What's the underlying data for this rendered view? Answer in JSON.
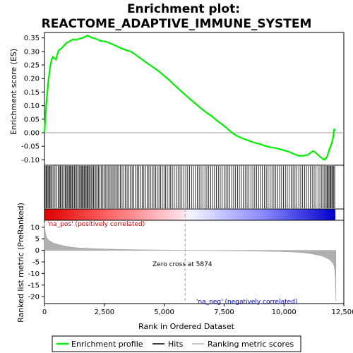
{
  "chart_data": {
    "type": "line",
    "title_line1": "Enrichment plot:",
    "title_line2": "REACTOME_ADAPTIVE_IMMUNE_SYSTEM",
    "xlabel": "Rank in Ordered Dataset",
    "ylabel_top": "Enrichment score (ES)",
    "ylabel_bottom": "Ranked list metric (PreRanked)",
    "xlim": [
      0,
      12500
    ],
    "x_ticks": [
      0,
      2500,
      5000,
      7500,
      10000,
      12500
    ],
    "x_tick_labels": [
      "0",
      "2,500",
      "5,000",
      "7,500",
      "10,000",
      "12,500"
    ],
    "es_ylim": [
      -0.12,
      0.37
    ],
    "es_ticks": [
      -0.1,
      -0.05,
      0.0,
      0.05,
      0.1,
      0.15,
      0.2,
      0.25,
      0.3,
      0.35
    ],
    "es_tick_labels": [
      "-0.10",
      "-0.05",
      "0.00",
      "0.05",
      "0.10",
      "0.15",
      "0.20",
      "0.25",
      "0.30",
      "0.35"
    ],
    "metric_ylim": [
      -23,
      13
    ],
    "metric_ticks": [
      10,
      5,
      0,
      -5,
      -10,
      -15,
      -20
    ],
    "metric_tick_labels": [
      "10",
      "5",
      "0",
      "-5",
      "-10",
      "-15",
      "-20"
    ],
    "es_curve": {
      "name": "Enrichment profile",
      "color": "#00ee00",
      "x": [
        0,
        40,
        80,
        120,
        160,
        200,
        250,
        300,
        350,
        420,
        480,
        540,
        600,
        700,
        800,
        900,
        1000,
        1100,
        1200,
        1300,
        1400,
        1500,
        1600,
        1700,
        1800,
        1900,
        2000,
        2100,
        2200,
        2300,
        2400,
        2500,
        2600,
        2800,
        3000,
        3200,
        3400,
        3600,
        3800,
        4000,
        4200,
        4400,
        4600,
        4800,
        5000,
        5200,
        5400,
        5600,
        5874,
        6000,
        6200,
        6400,
        6600,
        6800,
        7000,
        7200,
        7400,
        7600,
        7800,
        8000,
        8200,
        8400,
        8600,
        8800,
        9000,
        9200,
        9400,
        9600,
        9800,
        10000,
        10200,
        10400,
        10600,
        10800,
        11000,
        11100,
        11200,
        11300,
        11400,
        11500,
        11600,
        11650,
        11700,
        11750,
        11800,
        11850,
        11900,
        11950,
        12000,
        12050,
        12100,
        12150
      ],
      "y": [
        0.0,
        0.06,
        0.11,
        0.15,
        0.19,
        0.22,
        0.25,
        0.27,
        0.28,
        0.275,
        0.27,
        0.29,
        0.305,
        0.31,
        0.32,
        0.33,
        0.335,
        0.34,
        0.345,
        0.342,
        0.345,
        0.348,
        0.35,
        0.355,
        0.358,
        0.355,
        0.35,
        0.348,
        0.345,
        0.34,
        0.338,
        0.338,
        0.335,
        0.328,
        0.32,
        0.312,
        0.305,
        0.3,
        0.288,
        0.275,
        0.262,
        0.25,
        0.238,
        0.225,
        0.21,
        0.195,
        0.178,
        0.162,
        0.14,
        0.13,
        0.115,
        0.1,
        0.085,
        0.072,
        0.06,
        0.045,
        0.032,
        0.018,
        0.002,
        -0.01,
        -0.018,
        -0.025,
        -0.032,
        -0.038,
        -0.042,
        -0.048,
        -0.053,
        -0.056,
        -0.06,
        -0.065,
        -0.07,
        -0.078,
        -0.085,
        -0.085,
        -0.082,
        -0.075,
        -0.068,
        -0.072,
        -0.08,
        -0.088,
        -0.095,
        -0.098,
        -0.1,
        -0.095,
        -0.088,
        -0.075,
        -0.06,
        -0.05,
        -0.038,
        -0.02,
        0.012,
        0.008
      ]
    },
    "hits": {
      "name": "Hits",
      "color": "#000000",
      "x": [
        30,
        70,
        110,
        150,
        190,
        230,
        270,
        320,
        380,
        440,
        520,
        580,
        620,
        660,
        700,
        760,
        820,
        870,
        910,
        950,
        1000,
        1040,
        1080,
        1120,
        1160,
        1200,
        1250,
        1300,
        1350,
        1400,
        1450,
        1500,
        1540,
        1580,
        1620,
        1660,
        1700,
        1740,
        1780,
        1820,
        1860,
        1900,
        1950,
        2000,
        2050,
        2100,
        2150,
        2200,
        2260,
        2320,
        2380,
        2440,
        2500,
        2560,
        2620,
        2680,
        2740,
        2800,
        2860,
        2920,
        2980,
        3040,
        3100,
        3170,
        3240,
        3310,
        3380,
        3450,
        3520,
        3590,
        3660,
        3730,
        3800,
        3870,
        3940,
        4010,
        4080,
        4150,
        4220,
        4290,
        4360,
        4430,
        4500,
        4570,
        4640,
        4710,
        4780,
        4850,
        4920,
        4990,
        5060,
        5130,
        5200,
        5270,
        5340,
        5420,
        5500,
        5580,
        5660,
        5740,
        5820,
        5900,
        5980,
        6060,
        6140,
        6220,
        6300,
        6380,
        6460,
        6540,
        6620,
        6700,
        6780,
        6860,
        6940,
        7020,
        7100,
        7180,
        7260,
        7340,
        7420,
        7500,
        7580,
        7660,
        7740,
        7820,
        7900,
        7980,
        8060,
        8140,
        8220,
        8300,
        8380,
        8460,
        8540,
        8620,
        8700,
        8780,
        8860,
        8940,
        9020,
        9100,
        9180,
        9260,
        9340,
        9420,
        9500,
        9580,
        9660,
        9740,
        9820,
        9900,
        9980,
        10060,
        10140,
        10220,
        10300,
        10380,
        10460,
        10540,
        10620,
        10700,
        10780,
        10860,
        10940,
        11020,
        11100,
        11180,
        11260,
        11340,
        11420,
        11500,
        11580,
        11640,
        11700,
        11760,
        11800,
        11840,
        11880,
        11920,
        11960,
        12000,
        12040,
        12080,
        12120
      ]
    },
    "metric": {
      "name": "Ranking metric scores",
      "color": "#b0b0b0",
      "x": [
        0,
        20,
        50,
        100,
        150,
        200,
        300,
        400,
        500,
        600,
        800,
        1000,
        1200,
        1500,
        2000,
        2500,
        3000,
        3500,
        4000,
        4500,
        5000,
        5500,
        5874,
        6500,
        7000,
        7500,
        8000,
        8500,
        9000,
        9500,
        10000,
        10500,
        10800,
        11000,
        11200,
        11400,
        11600,
        11700,
        11800,
        11900,
        12000,
        12050,
        12100,
        12130,
        12150,
        12170
      ],
      "y": [
        12,
        9,
        7,
        5.5,
        4.8,
        4.2,
        3.6,
        3.1,
        2.8,
        2.5,
        2.0,
        1.6,
        1.3,
        1.0,
        0.8,
        0.6,
        0.45,
        0.35,
        0.28,
        0.2,
        0.15,
        0.08,
        0.0,
        -0.05,
        -0.1,
        -0.15,
        -0.2,
        -0.28,
        -0.35,
        -0.45,
        -0.6,
        -0.8,
        -1.0,
        -1.3,
        -1.6,
        -2.0,
        -2.5,
        -2.9,
        -3.4,
        -4.0,
        -5.0,
        -5.8,
        -7.0,
        -9.0,
        -13.0,
        -22.0
      ]
    },
    "zero_cross": 5874,
    "zero_cross_label": "Zero cross at 5874",
    "pos_label": "'na_pos' (positively correlated)",
    "neg_label": "'na_neg' (negatively correlated)",
    "pos_color": "#dd0000",
    "neg_color": "#0000cc"
  },
  "legend": {
    "items": [
      {
        "label": "Enrichment profile",
        "color": "#00ee00"
      },
      {
        "label": "Hits",
        "color": "#000000"
      },
      {
        "label": "Ranking metric scores",
        "color": "#b0b0b0"
      }
    ]
  }
}
